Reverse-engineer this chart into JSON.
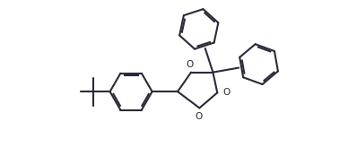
{
  "bg_color": "#ffffff",
  "line_color": "#2a2a3a",
  "line_width": 1.5,
  "fig_width": 3.88,
  "fig_height": 1.84,
  "dpi": 100,
  "xlim": [
    0,
    9.5
  ],
  "ylim": [
    0,
    4.5
  ]
}
